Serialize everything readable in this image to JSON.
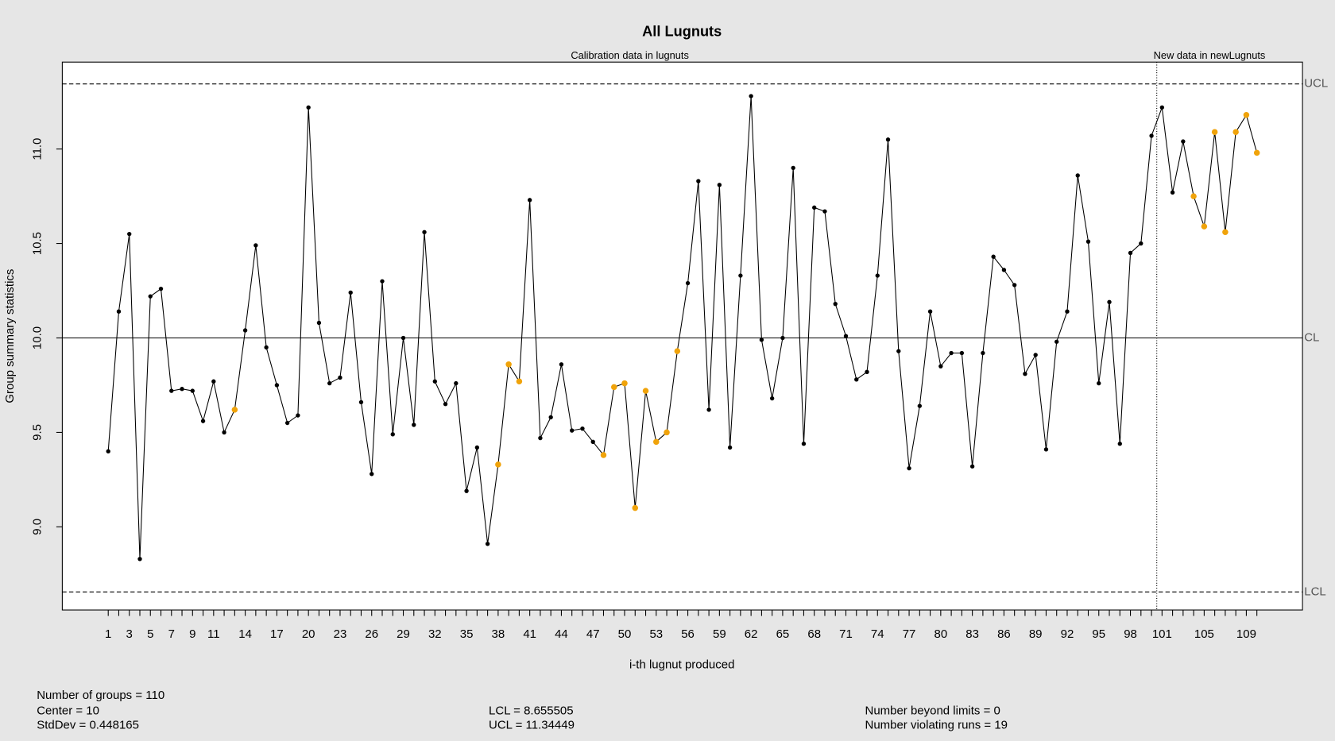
{
  "chart_data": {
    "type": "line",
    "title": "All Lugnuts",
    "calibration_label": "Calibration data in lugnuts",
    "new_label": "New data in newLugnuts",
    "xlabel": "i-th lugnut produced",
    "ylabel": "Group summary statistics",
    "x": [
      1,
      2,
      3,
      4,
      5,
      6,
      7,
      8,
      9,
      10,
      11,
      12,
      13,
      14,
      15,
      16,
      17,
      18,
      19,
      20,
      21,
      22,
      23,
      24,
      25,
      26,
      27,
      28,
      29,
      30,
      31,
      32,
      33,
      34,
      35,
      36,
      37,
      38,
      39,
      40,
      41,
      42,
      43,
      44,
      45,
      46,
      47,
      48,
      49,
      50,
      51,
      52,
      53,
      54,
      55,
      56,
      57,
      58,
      59,
      60,
      61,
      62,
      63,
      64,
      65,
      66,
      67,
      68,
      69,
      70,
      71,
      72,
      73,
      74,
      75,
      76,
      77,
      78,
      79,
      80,
      81,
      82,
      83,
      84,
      85,
      86,
      87,
      88,
      89,
      90,
      91,
      92,
      93,
      94,
      95,
      96,
      97,
      98,
      99,
      100,
      101,
      102,
      103,
      104,
      105,
      106,
      107,
      108,
      109,
      110
    ],
    "values": [
      9.4,
      10.14,
      10.55,
      8.83,
      10.22,
      10.26,
      9.72,
      9.73,
      9.72,
      9.56,
      9.77,
      9.5,
      9.62,
      10.04,
      10.49,
      9.95,
      9.75,
      9.55,
      9.59,
      11.22,
      10.08,
      9.76,
      9.79,
      10.24,
      9.66,
      9.28,
      10.3,
      9.49,
      10.0,
      9.54,
      10.56,
      9.77,
      9.65,
      9.76,
      9.19,
      9.42,
      8.91,
      9.33,
      9.86,
      9.77,
      10.73,
      9.47,
      9.58,
      9.86,
      9.51,
      9.52,
      9.45,
      9.38,
      9.74,
      9.76,
      9.1,
      9.72,
      9.45,
      9.5,
      9.93,
      10.29,
      10.83,
      9.62,
      10.81,
      9.42,
      10.33,
      11.28,
      9.99,
      9.68,
      10.0,
      10.9,
      9.44,
      10.69,
      10.67,
      10.18,
      10.01,
      9.78,
      9.82,
      10.33,
      11.05,
      9.93,
      9.31,
      9.64,
      10.14,
      9.85,
      9.92,
      9.92,
      9.32,
      9.92,
      10.43,
      10.36,
      10.28,
      9.81,
      9.91,
      9.41,
      9.98,
      10.14,
      10.86,
      10.51,
      9.76,
      10.19,
      9.44,
      10.45,
      10.5,
      11.07,
      11.22,
      10.77,
      11.04,
      10.75,
      10.59,
      11.09,
      10.56,
      11.09,
      11.18,
      10.98
    ],
    "color": "#000000",
    "violation_color": "#f0a30a",
    "violating_points": [
      13,
      38,
      39,
      40,
      48,
      49,
      50,
      51,
      52,
      53,
      54,
      55,
      104,
      105,
      106,
      107,
      108,
      109,
      110
    ],
    "boundary": 100.5,
    "xlim": [
      -3.36,
      114.33
    ],
    "ylim": [
      8.56,
      11.46
    ],
    "xticks": [
      1,
      3,
      5,
      7,
      9,
      11,
      14,
      17,
      20,
      23,
      26,
      29,
      32,
      35,
      38,
      41,
      44,
      47,
      50,
      53,
      56,
      59,
      62,
      65,
      68,
      71,
      74,
      77,
      80,
      83,
      86,
      89,
      92,
      95,
      98,
      101,
      105,
      109
    ],
    "yticks": [
      {
        "value": 9,
        "label": "9.0"
      },
      9.5,
      {
        "value": 10,
        "label": "10.0"
      },
      10.5,
      {
        "value": 11,
        "label": "11.0"
      }
    ],
    "limit_labels": {
      "ucl": "UCL",
      "cl": "CL",
      "lcl": "LCL"
    },
    "stats": {
      "groups": {
        "label": "Number of groups =",
        "value": 110
      },
      "center": {
        "label": "Center =",
        "value": 10
      },
      "stddev": {
        "label": "StdDev =",
        "value": 0.448165
      },
      "lcl": {
        "label": "LCL =",
        "value": 8.655505
      },
      "ucl": {
        "label": "UCL =",
        "value": 11.34449
      },
      "beyond": {
        "label": "Number beyond limits =",
        "value": 0
      },
      "runs": {
        "label": "Number violating runs =",
        "value": 19
      }
    }
  }
}
